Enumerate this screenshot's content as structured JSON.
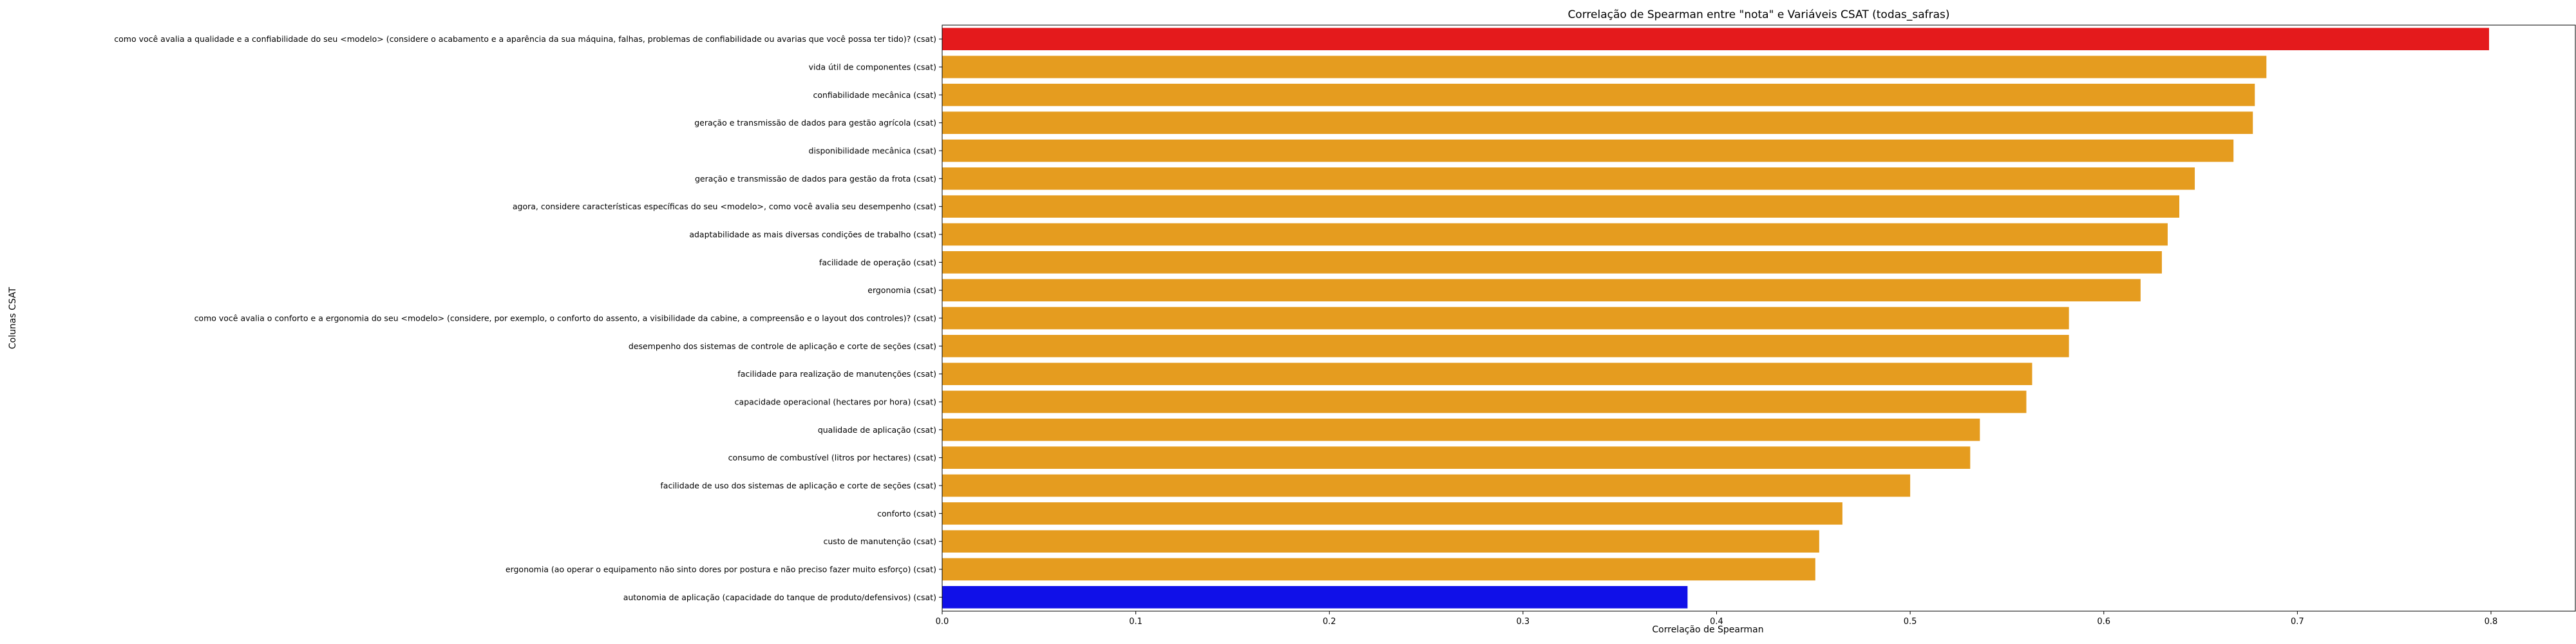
{
  "chart_data": {
    "type": "bar",
    "orientation": "horizontal",
    "title": "Correlação de Spearman entre \"nota\" e Variáveis CSAT (todas_safras)",
    "xlabel": "Correlação de Spearman",
    "ylabel": "Colunas CSAT",
    "xlim": [
      0,
      0.84
    ],
    "xticks": [
      0.0,
      0.1,
      0.2,
      0.3,
      0.4,
      0.5,
      0.6,
      0.7,
      0.8
    ],
    "xtick_labels": [
      "0.0",
      "0.1",
      "0.2",
      "0.3",
      "0.4",
      "0.5",
      "0.6",
      "0.7",
      "0.8"
    ],
    "grid": false,
    "colors": {
      "default": "#e59c1f",
      "max": "#e41a1c",
      "min": "#1010e8"
    },
    "categories": [
      "como você avalia a qualidade e a confiabilidade do seu <modelo> (considere o acabamento e a aparência da sua máquina, falhas, problemas de confiabilidade ou avarias que você possa ter tido)? (csat)",
      "vida útil de componentes (csat)",
      "confiabilidade mecânica (csat)",
      "geração e transmissão de dados para gestão agrícola (csat)",
      "disponibilidade mecânica (csat)",
      "geração e transmissão de dados para gestão da frota (csat)",
      "agora, considere características específicas do seu <modelo>, como você avalia seu desempenho (csat)",
      "adaptabilidade as mais diversas condições de trabalho (csat)",
      "facilidade de operação (csat)",
      "ergonomia (csat)",
      "como você avalia o conforto e a ergonomia do seu <modelo>  (considere, por exemplo, o conforto do assento, a visibilidade da cabine, a compreensão e o layout dos controles)? (csat)",
      "desempenho dos sistemas de controle de aplicação e corte de seções (csat)",
      "facilidade para realização de manutenções (csat)",
      "capacidade operacional (hectares por hora) (csat)",
      "qualidade de aplicação (csat)",
      "consumo de combustível (litros por hectares) (csat)",
      "facilidade de uso dos sistemas de aplicação e corte de seções (csat)",
      "conforto (csat)",
      "custo de manutenção (csat)",
      "ergonomia (ao operar o equipamento não sinto dores por postura e não preciso fazer muito esforço) (csat)",
      "autonomia de aplicação (capacidade do tanque de produto/defensivos) (csat)"
    ],
    "values": [
      0.799,
      0.684,
      0.678,
      0.677,
      0.667,
      0.647,
      0.639,
      0.633,
      0.63,
      0.619,
      0.582,
      0.582,
      0.563,
      0.56,
      0.536,
      0.531,
      0.5,
      0.465,
      0.453,
      0.451,
      0.385
    ],
    "highlight": {
      "0": "max",
      "20": "min"
    }
  }
}
